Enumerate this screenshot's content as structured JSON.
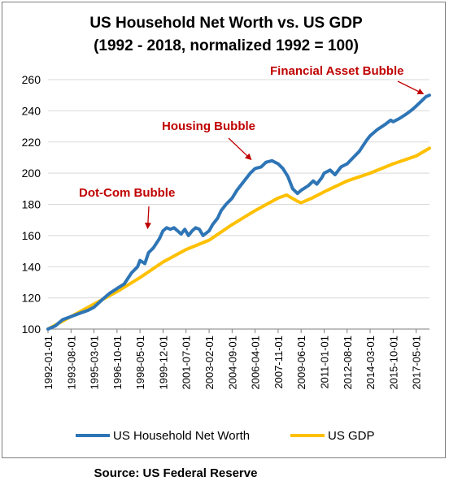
{
  "source": "Source: US Federal Reserve",
  "chart_data": {
    "type": "line",
    "title_line1": "US Household Net Worth vs. US GDP",
    "title_line2": "(1992 - 2018, normalized 1992 = 100)",
    "xlabel": "",
    "ylabel": "",
    "ylim": [
      100,
      260
    ],
    "yticks": [
      100,
      120,
      140,
      160,
      180,
      200,
      220,
      240,
      260
    ],
    "xlim": [
      "1992-01-01",
      "2018-04-01"
    ],
    "xticks": [
      "1992-01-01",
      "1993-08-01",
      "1995-03-01",
      "1996-10-01",
      "1998-05-01",
      "1999-12-01",
      "2001-07-01",
      "2003-02-01",
      "2004-09-01",
      "2006-04-01",
      "2007-11-01",
      "2009-06-01",
      "2011-01-01",
      "2012-08-01",
      "2014-03-01",
      "2015-10-01",
      "2017-05-01"
    ],
    "grid": "horizontal",
    "legend": "bottom",
    "colors": {
      "networth": "#2e75b6",
      "gdp": "#ffc000",
      "annotation": "#c00000"
    },
    "series": [
      {
        "name": "US Household Net Worth",
        "points": [
          [
            "1992-01-01",
            100
          ],
          [
            "1992-07-01",
            102
          ],
          [
            "1993-01-01",
            106
          ],
          [
            "1993-08-01",
            108
          ],
          [
            "1994-03-01",
            110
          ],
          [
            "1994-10-01",
            112
          ],
          [
            "1995-03-01",
            114
          ],
          [
            "1995-10-01",
            119
          ],
          [
            "1996-04-01",
            123
          ],
          [
            "1996-10-01",
            126
          ],
          [
            "1997-04-01",
            129
          ],
          [
            "1997-10-01",
            136
          ],
          [
            "1998-03-01",
            140
          ],
          [
            "1998-05-01",
            144
          ],
          [
            "1998-09-01",
            142
          ],
          [
            "1998-12-01",
            149
          ],
          [
            "1999-04-01",
            152
          ],
          [
            "1999-09-01",
            158
          ],
          [
            "1999-12-01",
            163
          ],
          [
            "2000-03-01",
            165
          ],
          [
            "2000-06-01",
            164
          ],
          [
            "2000-09-01",
            165
          ],
          [
            "2000-12-01",
            163
          ],
          [
            "2001-03-01",
            161
          ],
          [
            "2001-06-01",
            164
          ],
          [
            "2001-09-01",
            160
          ],
          [
            "2001-12-01",
            163
          ],
          [
            "2002-03-01",
            165
          ],
          [
            "2002-06-01",
            164
          ],
          [
            "2002-09-01",
            160
          ],
          [
            "2003-02-01",
            163
          ],
          [
            "2003-05-01",
            167
          ],
          [
            "2003-09-01",
            171
          ],
          [
            "2003-12-01",
            176
          ],
          [
            "2004-04-01",
            180
          ],
          [
            "2004-09-01",
            184
          ],
          [
            "2005-01-01",
            189
          ],
          [
            "2005-06-01",
            194
          ],
          [
            "2005-12-01",
            200
          ],
          [
            "2006-04-01",
            203
          ],
          [
            "2006-09-01",
            204
          ],
          [
            "2007-01-01",
            207
          ],
          [
            "2007-06-01",
            208
          ],
          [
            "2007-11-01",
            206
          ],
          [
            "2008-03-01",
            203
          ],
          [
            "2008-07-01",
            198
          ],
          [
            "2008-11-01",
            190
          ],
          [
            "2009-03-01",
            187
          ],
          [
            "2009-06-01",
            189
          ],
          [
            "2009-12-01",
            192
          ],
          [
            "2010-04-01",
            195
          ],
          [
            "2010-07-01",
            193
          ],
          [
            "2010-11-01",
            197
          ],
          [
            "2011-01-01",
            200
          ],
          [
            "2011-06-01",
            202
          ],
          [
            "2011-10-01",
            199
          ],
          [
            "2012-03-01",
            204
          ],
          [
            "2012-08-01",
            206
          ],
          [
            "2013-01-01",
            210
          ],
          [
            "2013-06-01",
            214
          ],
          [
            "2013-12-01",
            221
          ],
          [
            "2014-03-01",
            224
          ],
          [
            "2014-09-01",
            228
          ],
          [
            "2015-03-01",
            231
          ],
          [
            "2015-08-01",
            234
          ],
          [
            "2015-10-01",
            233
          ],
          [
            "2016-03-01",
            235
          ],
          [
            "2016-09-01",
            238
          ],
          [
            "2017-02-01",
            241
          ],
          [
            "2017-05-01",
            243
          ],
          [
            "2017-09-01",
            246
          ],
          [
            "2018-01-01",
            249
          ],
          [
            "2018-04-01",
            250
          ]
        ]
      },
      {
        "name": "US GDP",
        "points": [
          [
            "1992-01-01",
            100
          ],
          [
            "1993-08-01",
            108
          ],
          [
            "1995-03-01",
            116
          ],
          [
            "1996-10-01",
            124
          ],
          [
            "1998-05-01",
            133
          ],
          [
            "1999-12-01",
            143
          ],
          [
            "2001-07-01",
            151
          ],
          [
            "2003-02-01",
            157
          ],
          [
            "2004-09-01",
            167
          ],
          [
            "2006-04-01",
            176
          ],
          [
            "2007-11-01",
            184
          ],
          [
            "2008-06-01",
            186
          ],
          [
            "2009-03-01",
            182
          ],
          [
            "2009-06-01",
            181
          ],
          [
            "2010-03-01",
            184
          ],
          [
            "2011-01-01",
            188
          ],
          [
            "2012-08-01",
            195
          ],
          [
            "2014-03-01",
            200
          ],
          [
            "2015-10-01",
            206
          ],
          [
            "2017-05-01",
            211
          ],
          [
            "2018-04-01",
            216
          ]
        ]
      }
    ],
    "annotations": [
      {
        "text": "Dot-Com Bubble",
        "x": "1999-02-01",
        "y": 163
      },
      {
        "text": "Housing Bubble",
        "x": "2006-03-01",
        "y": 207
      },
      {
        "text": "Financial Asset Bubble",
        "x": "2018-01-01",
        "y": 249
      }
    ]
  }
}
